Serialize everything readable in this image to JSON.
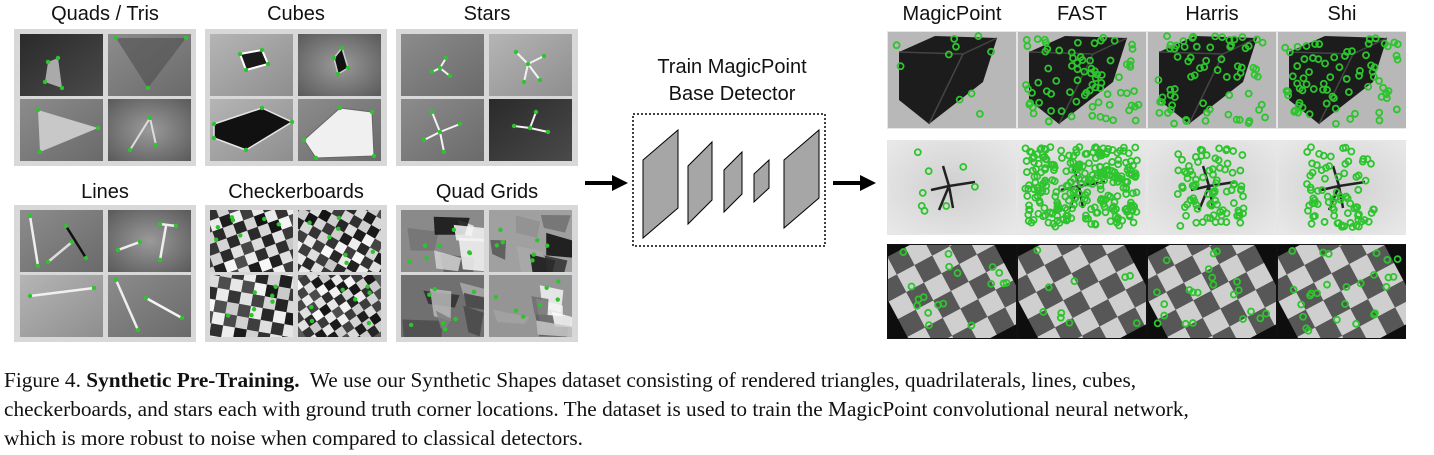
{
  "categories": [
    {
      "id": "quads-tris",
      "title": "Quads / Tris"
    },
    {
      "id": "cubes",
      "title": "Cubes"
    },
    {
      "id": "stars",
      "title": "Stars"
    },
    {
      "id": "lines",
      "title": "Lines"
    },
    {
      "id": "checkerboards",
      "title": "Checkerboards"
    },
    {
      "id": "quad-grids",
      "title": "Quad Grids"
    }
  ],
  "train_box": {
    "line1": "Train MagicPoint",
    "line2": "Base Detector"
  },
  "detectors": [
    "MagicPoint",
    "FAST",
    "Harris",
    "Shi"
  ],
  "caption": {
    "figure_number": "Figure 4.",
    "bold_title": "Synthetic Pre-Training.",
    "line1_rest": "We use our Synthetic Shapes dataset consisting of rendered triangles, quadrilaterals, lines, cubes,",
    "line2": "checkerboards, and stars each with ground truth corner locations. The dataset is used to train the MagicPoint convolutional neural network,",
    "line3": "which is more robust to noise when compared to classical detectors."
  },
  "colors": {
    "corner": "#2ec42e",
    "layer": "#a6a6a6",
    "tile_border": "#d6d6d6",
    "arrow": "#000000"
  }
}
